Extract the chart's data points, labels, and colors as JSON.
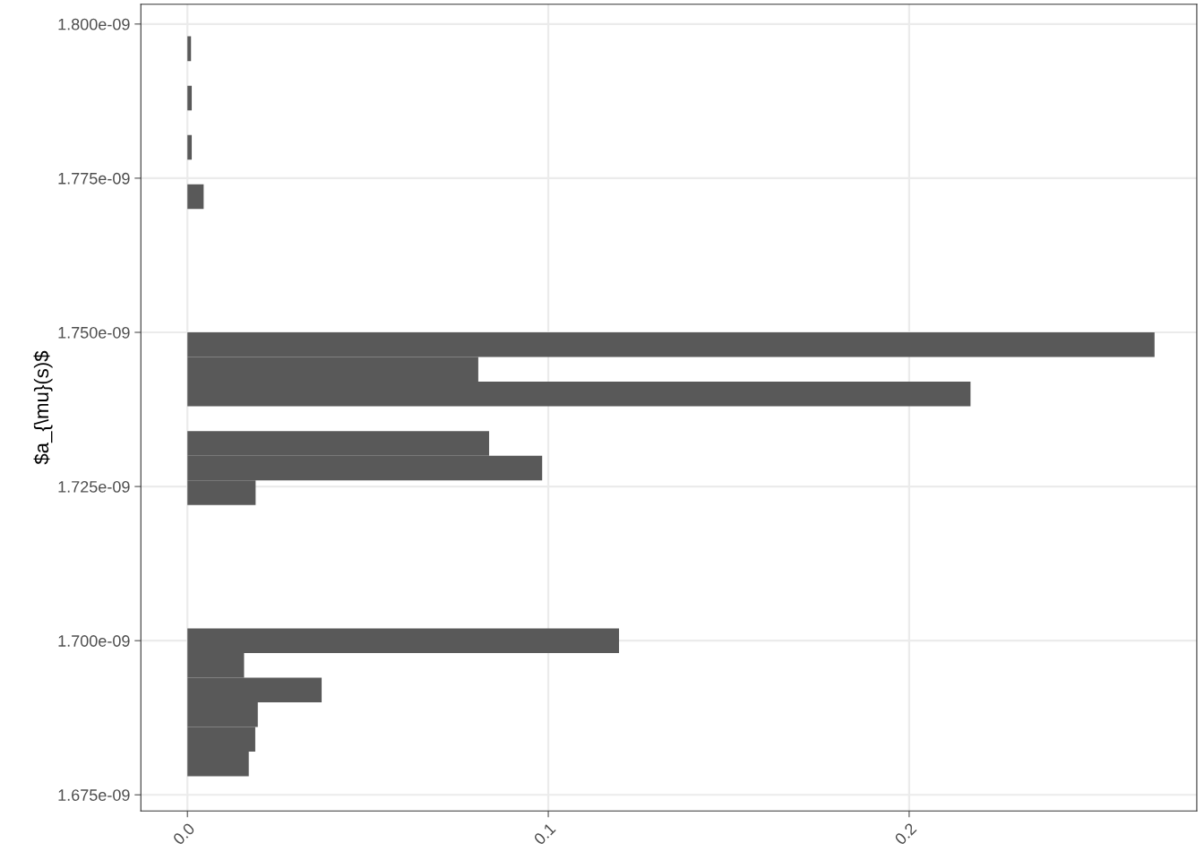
{
  "chart_data": {
    "type": "histogram",
    "orientation": "horizontal",
    "ylabel": "$a_{\\mu}(s)$",
    "color": "#595959",
    "bins": [
      1.678e-09,
      1.682e-09,
      1.686e-09,
      1.69e-09,
      1.694e-09,
      1.698e-09,
      1.702e-09,
      1.706e-09,
      1.71e-09,
      1.714e-09,
      1.718e-09,
      1.722e-09,
      1.726e-09,
      1.73e-09,
      1.734e-09,
      1.738e-09,
      1.742e-09,
      1.746e-09,
      1.75e-09,
      1.754e-09,
      1.758e-09,
      1.762e-09,
      1.766e-09,
      1.77e-09,
      1.774e-09,
      1.778e-09,
      1.782e-09,
      1.786e-09,
      1.79e-09,
      1.794e-09,
      1.798e-09
    ],
    "values": [
      0.017,
      0.0188,
      0.0195,
      0.0372,
      0.0157,
      0.1196,
      0,
      0,
      0,
      0,
      0,
      0.0189,
      0.0983,
      0.0836,
      0,
      0.217,
      0.0806,
      0.268,
      0,
      0,
      0,
      0,
      0,
      0.0045,
      0,
      0.0012,
      0,
      0.0012,
      0,
      0.001
    ],
    "xlim": [
      -0.0129,
      0.2797
    ],
    "xticks": [
      {
        "value": 0,
        "label": "0.0"
      },
      {
        "value": 0.1,
        "label": "0.1"
      },
      {
        "value": 0.2,
        "label": "0.2"
      }
    ],
    "ylim": [
      1.67238e-09,
      1.8032e-09
    ],
    "yticks": [
      {
        "value": 1.675e-09,
        "label": "1.675e-09"
      },
      {
        "value": 1.7e-09,
        "label": "1.700e-09"
      },
      {
        "value": 1.725e-09,
        "label": "1.725e-09"
      },
      {
        "value": 1.75e-09,
        "label": "1.750e-09"
      },
      {
        "value": 1.775e-09,
        "label": "1.775e-09"
      },
      {
        "value": 1.8e-09,
        "label": "1.800e-09"
      }
    ],
    "grid": true
  }
}
